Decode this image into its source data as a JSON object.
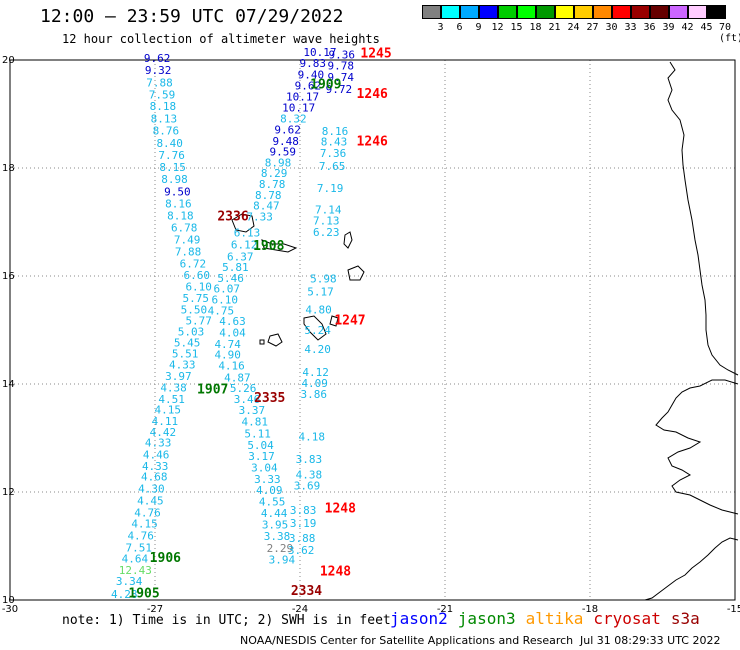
{
  "header": {
    "title": "12:00 – 23:59 UTC 07/29/2022",
    "subtitle": "12 hour collection of altimeter wave heights"
  },
  "legend": {
    "colors": [
      "#808080",
      "#00ffff",
      "#00aaff",
      "#0000ff",
      "#00cc00",
      "#00ff00",
      "#009900",
      "#ffff00",
      "#ffcc00",
      "#ff8800",
      "#ff0000",
      "#990000",
      "#660000",
      "#cc66ff",
      "#ffccff",
      "#000000"
    ],
    "labels": [
      "3",
      "6",
      "9",
      "12",
      "15",
      "18",
      "21",
      "24",
      "27",
      "30",
      "33",
      "36",
      "39",
      "42",
      "45",
      "70 (ft)"
    ]
  },
  "axes": {
    "y_ticks": [
      "20",
      "18",
      "16",
      "14",
      "12",
      "10"
    ],
    "x_ticks": [
      "-30",
      "-27",
      "-24",
      "-21",
      "-18",
      "-15"
    ]
  },
  "observations": [
    {
      "t": "9.62",
      "c": "#0000cc",
      "lon": -27.23,
      "lat": 19.96
    },
    {
      "t": "9.32",
      "c": "#0000cc",
      "lon": -27.21,
      "lat": 19.74
    },
    {
      "t": "7.88",
      "c": "#1ab8e8",
      "lon": -27.18,
      "lat": 19.51
    },
    {
      "t": "7.59",
      "c": "#1ab8e8",
      "lon": -27.13,
      "lat": 19.29
    },
    {
      "t": "8.18",
      "c": "#1ab8e8",
      "lon": -27.11,
      "lat": 19.07
    },
    {
      "t": "8.13",
      "c": "#1ab8e8",
      "lon": -27.09,
      "lat": 18.84
    },
    {
      "t": "8.76",
      "c": "#1ab8e8",
      "lon": -27.05,
      "lat": 18.62
    },
    {
      "t": "8.40",
      "c": "#1ab8e8",
      "lon": -26.97,
      "lat": 18.39
    },
    {
      "t": "7.76",
      "c": "#1ab8e8",
      "lon": -26.93,
      "lat": 18.17
    },
    {
      "t": "8.15",
      "c": "#1ab8e8",
      "lon": -26.91,
      "lat": 17.94
    },
    {
      "t": "8.98",
      "c": "#1ab8e8",
      "lon": -26.87,
      "lat": 17.72
    },
    {
      "t": "9.50",
      "c": "#0000cc",
      "lon": -26.81,
      "lat": 17.49
    },
    {
      "t": "8.16",
      "c": "#1ab8e8",
      "lon": -26.79,
      "lat": 17.27
    },
    {
      "t": "8.18",
      "c": "#1ab8e8",
      "lon": -26.75,
      "lat": 17.05
    },
    {
      "t": "6.78",
      "c": "#1ab8e8",
      "lon": -26.67,
      "lat": 16.82
    },
    {
      "t": "7.49",
      "c": "#1ab8e8",
      "lon": -26.61,
      "lat": 16.6
    },
    {
      "t": "7.88",
      "c": "#1ab8e8",
      "lon": -26.59,
      "lat": 16.38
    },
    {
      "t": "6.72",
      "c": "#1ab8e8",
      "lon": -26.49,
      "lat": 16.16
    },
    {
      "t": "6.60",
      "c": "#1ab8e8",
      "lon": -26.41,
      "lat": 15.94
    },
    {
      "t": "6.10",
      "c": "#1ab8e8",
      "lon": -26.37,
      "lat": 15.73
    },
    {
      "t": "5.75",
      "c": "#1ab8e8",
      "lon": -26.43,
      "lat": 15.52
    },
    {
      "t": "5.50",
      "c": "#1ab8e8",
      "lon": -26.47,
      "lat": 15.31
    },
    {
      "t": "5.77",
      "c": "#1ab8e8",
      "lon": -26.37,
      "lat": 15.1
    },
    {
      "t": "5.03",
      "c": "#1ab8e8",
      "lon": -26.53,
      "lat": 14.9
    },
    {
      "t": "5.45",
      "c": "#1ab8e8",
      "lon": -26.61,
      "lat": 14.69
    },
    {
      "t": "5.51",
      "c": "#1ab8e8",
      "lon": -26.65,
      "lat": 14.49
    },
    {
      "t": "4.33",
      "c": "#1ab8e8",
      "lon": -26.71,
      "lat": 14.29
    },
    {
      "t": "3.97",
      "c": "#1ab8e8",
      "lon": -26.79,
      "lat": 14.07
    },
    {
      "t": "4.38",
      "c": "#1ab8e8",
      "lon": -26.89,
      "lat": 13.86
    },
    {
      "t": "4.51",
      "c": "#1ab8e8",
      "lon": -26.93,
      "lat": 13.65
    },
    {
      "t": "4.15",
      "c": "#1ab8e8",
      "lon": -27.01,
      "lat": 13.45
    },
    {
      "t": "4.11",
      "c": "#1ab8e8",
      "lon": -27.07,
      "lat": 13.24
    },
    {
      "t": "4.42",
      "c": "#1ab8e8",
      "lon": -27.11,
      "lat": 13.04
    },
    {
      "t": "4.33",
      "c": "#1ab8e8",
      "lon": -27.21,
      "lat": 12.84
    },
    {
      "t": "4.46",
      "c": "#1ab8e8",
      "lon": -27.25,
      "lat": 12.62
    },
    {
      "t": "4.33",
      "c": "#1ab8e8",
      "lon": -27.27,
      "lat": 12.41
    },
    {
      "t": "4.68",
      "c": "#1ab8e8",
      "lon": -27.29,
      "lat": 12.21
    },
    {
      "t": "4.30",
      "c": "#1ab8e8",
      "lon": -27.35,
      "lat": 11.99
    },
    {
      "t": "4.45",
      "c": "#1ab8e8",
      "lon": -27.37,
      "lat": 11.77
    },
    {
      "t": "4.76",
      "c": "#1ab8e8",
      "lon": -27.43,
      "lat": 11.55
    },
    {
      "t": "4.15",
      "c": "#1ab8e8",
      "lon": -27.49,
      "lat": 11.34
    },
    {
      "t": "4.76",
      "c": "#1ab8e8",
      "lon": -27.57,
      "lat": 11.12
    },
    {
      "t": "7.51",
      "c": "#1ab8e8",
      "lon": -27.61,
      "lat": 10.9
    },
    {
      "t": "4.64",
      "c": "#1ab8e8",
      "lon": -27.69,
      "lat": 10.69
    },
    {
      "t": "12.43",
      "c": "#66dd66",
      "lon": -27.75,
      "lat": 10.48
    },
    {
      "t": "3.34",
      "c": "#1ab8e8",
      "lon": -27.81,
      "lat": 10.28
    },
    {
      "t": "4.28",
      "c": "#1ab8e8",
      "lon": -27.91,
      "lat": 10.04
    },
    {
      "t": "10.17",
      "c": "#0000cc",
      "lon": -23.93,
      "lat": 20.07
    },
    {
      "t": "9.83",
      "c": "#0000cc",
      "lon": -24.01,
      "lat": 19.87
    },
    {
      "t": "9.40",
      "c": "#0000cc",
      "lon": -24.05,
      "lat": 19.66
    },
    {
      "t": "9.62",
      "c": "#0000cc",
      "lon": -24.11,
      "lat": 19.45
    },
    {
      "t": "10.17",
      "c": "#0000cc",
      "lon": -24.29,
      "lat": 19.25
    },
    {
      "t": "10.17",
      "c": "#0000cc",
      "lon": -24.37,
      "lat": 19.05
    },
    {
      "t": "8.32",
      "c": "#1ab8e8",
      "lon": -24.41,
      "lat": 18.84
    },
    {
      "t": "9.62",
      "c": "#0000cc",
      "lon": -24.53,
      "lat": 18.64
    },
    {
      "t": "9.48",
      "c": "#0000cc",
      "lon": -24.57,
      "lat": 18.43
    },
    {
      "t": "9.59",
      "c": "#0000cc",
      "lon": -24.63,
      "lat": 18.23
    },
    {
      "t": "8.98",
      "c": "#1ab8e8",
      "lon": -24.73,
      "lat": 18.03
    },
    {
      "t": "8.29",
      "c": "#1ab8e8",
      "lon": -24.81,
      "lat": 17.83
    },
    {
      "t": "8.78",
      "c": "#1ab8e8",
      "lon": -24.85,
      "lat": 17.63
    },
    {
      "t": "8.78",
      "c": "#1ab8e8",
      "lon": -24.93,
      "lat": 17.43
    },
    {
      "t": "8.47",
      "c": "#1ab8e8",
      "lon": -24.97,
      "lat": 17.23
    },
    {
      "t": "7.33",
      "c": "#1ab8e8",
      "lon": -25.11,
      "lat": 17.03
    },
    {
      "t": "6.13",
      "c": "#1ab8e8",
      "lon": -25.37,
      "lat": 16.73
    },
    {
      "t": "6.12",
      "c": "#1ab8e8",
      "lon": -25.43,
      "lat": 16.51
    },
    {
      "t": "6.37",
      "c": "#1ab8e8",
      "lon": -25.51,
      "lat": 16.29
    },
    {
      "t": "5.81",
      "c": "#1ab8e8",
      "lon": -25.61,
      "lat": 16.09
    },
    {
      "t": "5.46",
      "c": "#1ab8e8",
      "lon": -25.71,
      "lat": 15.89
    },
    {
      "t": "6.07",
      "c": "#1ab8e8",
      "lon": -25.79,
      "lat": 15.69
    },
    {
      "t": "6.10",
      "c": "#1ab8e8",
      "lon": -25.83,
      "lat": 15.49
    },
    {
      "t": "4.75",
      "c": "#1ab8e8",
      "lon": -25.91,
      "lat": 15.29
    },
    {
      "t": "4.63",
      "c": "#1ab8e8",
      "lon": -25.67,
      "lat": 15.09
    },
    {
      "t": "4.04",
      "c": "#1ab8e8",
      "lon": -25.67,
      "lat": 14.88
    },
    {
      "t": "4.74",
      "c": "#1ab8e8",
      "lon": -25.77,
      "lat": 14.67
    },
    {
      "t": "4.90",
      "c": "#1ab8e8",
      "lon": -25.77,
      "lat": 14.47
    },
    {
      "t": "4.16",
      "c": "#1ab8e8",
      "lon": -25.69,
      "lat": 14.27
    },
    {
      "t": "4.87",
      "c": "#1ab8e8",
      "lon": -25.57,
      "lat": 14.05
    },
    {
      "t": "5.26",
      "c": "#1ab8e8",
      "lon": -25.45,
      "lat": 13.85
    },
    {
      "t": "3.46",
      "c": "#1ab8e8",
      "lon": -25.37,
      "lat": 13.65
    },
    {
      "t": "3.37",
      "c": "#1ab8e8",
      "lon": -25.27,
      "lat": 13.44
    },
    {
      "t": "4.81",
      "c": "#1ab8e8",
      "lon": -25.21,
      "lat": 13.23
    },
    {
      "t": "5.11",
      "c": "#1ab8e8",
      "lon": -25.15,
      "lat": 13.01
    },
    {
      "t": "5.04",
      "c": "#1ab8e8",
      "lon": -25.09,
      "lat": 12.8
    },
    {
      "t": "3.17",
      "c": "#1ab8e8",
      "lon": -25.07,
      "lat": 12.59
    },
    {
      "t": "3.04",
      "c": "#1ab8e8",
      "lon": -25.01,
      "lat": 12.38
    },
    {
      "t": "3.33",
      "c": "#1ab8e8",
      "lon": -24.95,
      "lat": 12.17
    },
    {
      "t": "4.09",
      "c": "#1ab8e8",
      "lon": -24.91,
      "lat": 11.96
    },
    {
      "t": "4.55",
      "c": "#1ab8e8",
      "lon": -24.85,
      "lat": 11.75
    },
    {
      "t": "4.44",
      "c": "#1ab8e8",
      "lon": -24.81,
      "lat": 11.54
    },
    {
      "t": "3.95",
      "c": "#1ab8e8",
      "lon": -24.79,
      "lat": 11.32
    },
    {
      "t": "3.38",
      "c": "#1ab8e8",
      "lon": -24.75,
      "lat": 11.11
    },
    {
      "t": "2.29",
      "c": "#808080",
      "lon": -24.69,
      "lat": 10.89
    },
    {
      "t": "3.94",
      "c": "#1ab8e8",
      "lon": -24.65,
      "lat": 10.68
    },
    {
      "t": "9.36",
      "c": "#0000cc",
      "lon": -23.41,
      "lat": 20.03
    },
    {
      "t": "9.78",
      "c": "#0000cc",
      "lon": -23.43,
      "lat": 19.82
    },
    {
      "t": "9.74",
      "c": "#0000cc",
      "lon": -23.43,
      "lat": 19.61
    },
    {
      "t": "9.72",
      "c": "#0000cc",
      "lon": -23.47,
      "lat": 19.39
    },
    {
      "t": "8.16",
      "c": "#1ab8e8",
      "lon": -23.55,
      "lat": 18.61
    },
    {
      "t": "8.43",
      "c": "#1ab8e8",
      "lon": -23.57,
      "lat": 18.42
    },
    {
      "t": "7.36",
      "c": "#1ab8e8",
      "lon": -23.59,
      "lat": 18.2
    },
    {
      "t": "7.65",
      "c": "#1ab8e8",
      "lon": -23.61,
      "lat": 17.96
    },
    {
      "t": "7.19",
      "c": "#1ab8e8",
      "lon": -23.65,
      "lat": 17.56
    },
    {
      "t": "7.14",
      "c": "#1ab8e8",
      "lon": -23.69,
      "lat": 17.16
    },
    {
      "t": "7.13",
      "c": "#1ab8e8",
      "lon": -23.73,
      "lat": 16.95
    },
    {
      "t": "6.23",
      "c": "#1ab8e8",
      "lon": -23.73,
      "lat": 16.74
    },
    {
      "t": "5.98",
      "c": "#1ab8e8",
      "lon": -23.79,
      "lat": 15.88
    },
    {
      "t": "5.17",
      "c": "#1ab8e8",
      "lon": -23.85,
      "lat": 15.64
    },
    {
      "t": "4.80",
      "c": "#1ab8e8",
      "lon": -23.89,
      "lat": 15.31
    },
    {
      "t": "5.24",
      "c": "#1ab8e8",
      "lon": -23.91,
      "lat": 14.93
    },
    {
      "t": "4.20",
      "c": "#1ab8e8",
      "lon": -23.91,
      "lat": 14.57
    },
    {
      "t": "4.12",
      "c": "#1ab8e8",
      "lon": -23.95,
      "lat": 14.15
    },
    {
      "t": "4.09",
      "c": "#1ab8e8",
      "lon": -23.97,
      "lat": 13.94
    },
    {
      "t": "3.86",
      "c": "#1ab8e8",
      "lon": -23.99,
      "lat": 13.74
    },
    {
      "t": "4.18",
      "c": "#1ab8e8",
      "lon": -24.03,
      "lat": 12.95
    },
    {
      "t": "3.83",
      "c": "#1ab8e8",
      "lon": -24.09,
      "lat": 12.54
    },
    {
      "t": "4.38",
      "c": "#1ab8e8",
      "lon": -24.09,
      "lat": 12.25
    },
    {
      "t": "3.69",
      "c": "#1ab8e8",
      "lon": -24.13,
      "lat": 12.05
    },
    {
      "t": "3.83",
      "c": "#1ab8e8",
      "lon": -24.21,
      "lat": 11.59
    },
    {
      "t": "3.19",
      "c": "#1ab8e8",
      "lon": -24.21,
      "lat": 11.35
    },
    {
      "t": "3.88",
      "c": "#1ab8e8",
      "lon": -24.23,
      "lat": 11.07
    },
    {
      "t": "3.62",
      "c": "#1ab8e8",
      "lon": -24.25,
      "lat": 10.85
    }
  ],
  "time_labels": [
    {
      "t": "1245",
      "c": "#ff0000",
      "lon": -22.75,
      "lat": 20.05
    },
    {
      "t": "1246",
      "c": "#ff0000",
      "lon": -22.83,
      "lat": 19.3
    },
    {
      "t": "1246",
      "c": "#ff0000",
      "lon": -22.83,
      "lat": 18.42
    },
    {
      "t": "1247",
      "c": "#ff0000",
      "lon": -23.29,
      "lat": 15.1
    },
    {
      "t": "1248",
      "c": "#ff0000",
      "lon": -23.49,
      "lat": 11.62
    },
    {
      "t": "1248",
      "c": "#ff0000",
      "lon": -23.59,
      "lat": 10.45
    },
    {
      "t": "1909",
      "c": "#007700",
      "lon": -23.79,
      "lat": 19.47
    },
    {
      "t": "1908",
      "c": "#007700",
      "lon": -24.97,
      "lat": 16.48
    },
    {
      "t": "1907",
      "c": "#007700",
      "lon": -26.13,
      "lat": 13.82
    },
    {
      "t": "1906",
      "c": "#007700",
      "lon": -27.11,
      "lat": 10.7
    },
    {
      "t": "1905",
      "c": "#007700",
      "lon": -27.55,
      "lat": 10.05
    },
    {
      "t": "2336",
      "c": "#990000",
      "lon": -25.71,
      "lat": 17.03
    },
    {
      "t": "2335",
      "c": "#990000",
      "lon": -24.95,
      "lat": 13.67
    },
    {
      "t": "2334",
      "c": "#990000",
      "lon": -24.19,
      "lat": 10.09
    }
  ],
  "footer": {
    "note": "note: 1) Time is in UTC; 2) SWH is in feet",
    "credit": "NOAA/NESDIS Center for Satellite Applications and Research",
    "timestamp": "Jul 31 08:29:33 UTC 2022",
    "satellites": [
      {
        "name": "jason2",
        "color": "#0000ff"
      },
      {
        "name": "jason3",
        "color": "#008800"
      },
      {
        "name": "altika",
        "color": "#ff9900"
      },
      {
        "name": "cryosat",
        "color": "#cc0000"
      },
      {
        "name": "s3a",
        "color": "#990000"
      }
    ]
  }
}
